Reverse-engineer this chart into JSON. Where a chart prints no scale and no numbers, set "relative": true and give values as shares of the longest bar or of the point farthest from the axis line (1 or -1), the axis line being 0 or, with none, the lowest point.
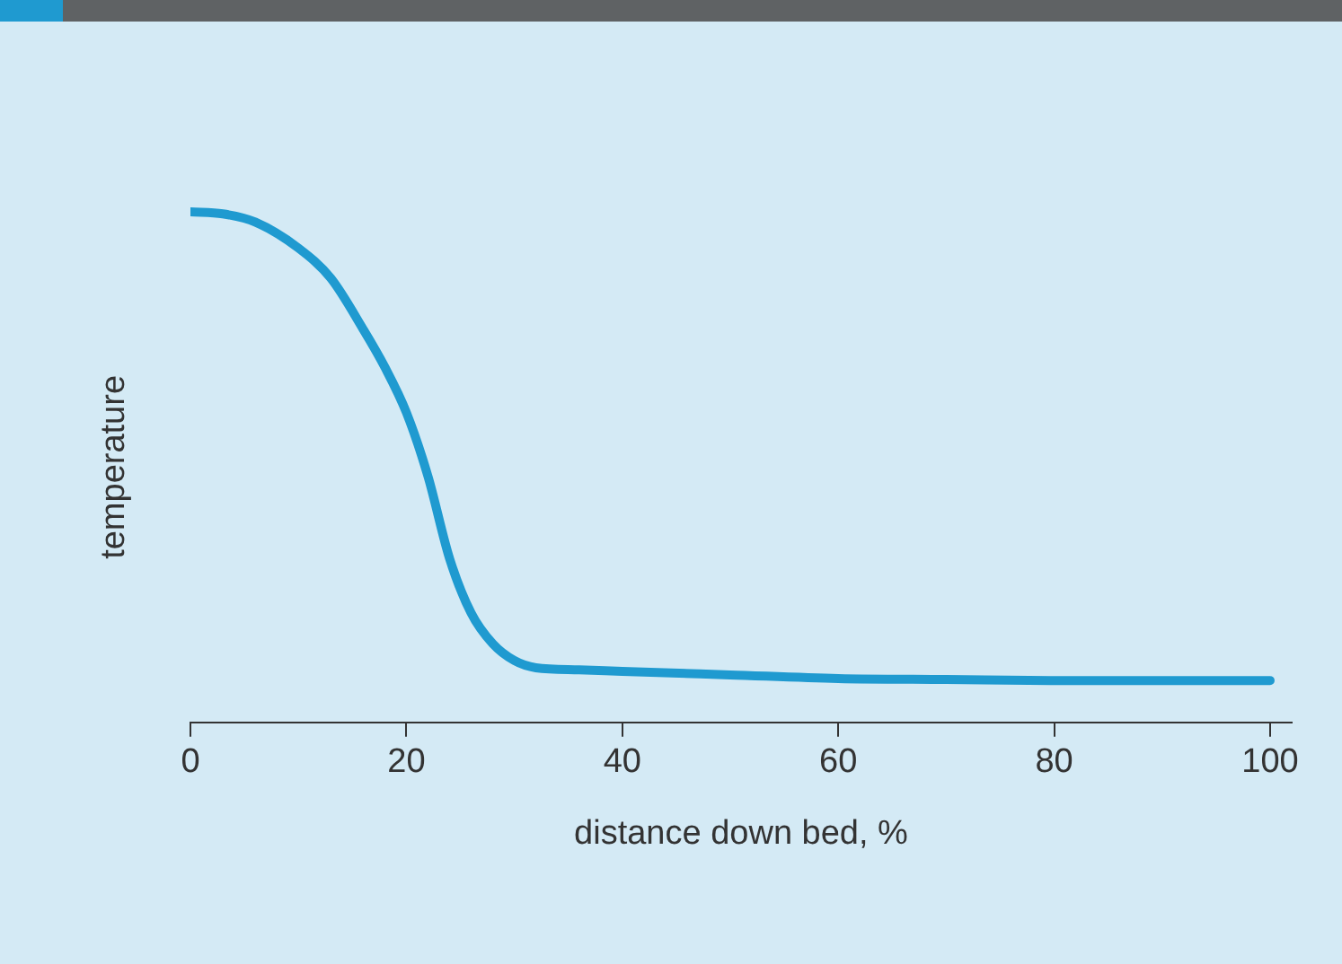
{
  "chart_data": {
    "type": "line",
    "xlabel": "distance down bed, %",
    "ylabel": "temperature",
    "relative": true,
    "x": [
      0,
      3,
      6,
      10,
      13,
      16,
      18,
      20,
      22,
      24,
      26,
      28,
      30,
      32,
      36,
      40,
      50,
      60,
      70,
      80,
      90,
      100
    ],
    "xlim": [
      0,
      102
    ],
    "xticks": [
      0,
      20,
      40,
      60,
      80,
      100
    ],
    "grid": false,
    "legend": false,
    "series": [
      {
        "color": "#1f9ad0",
        "values": [
          1.0,
          0.996,
          0.98,
          0.929,
          0.87,
          0.77,
          0.696,
          0.607,
          0.482,
          0.321,
          0.214,
          0.154,
          0.121,
          0.107,
          0.103,
          0.1,
          0.093,
          0.086,
          0.084,
          0.082,
          0.082,
          0.082
        ]
      }
    ]
  }
}
